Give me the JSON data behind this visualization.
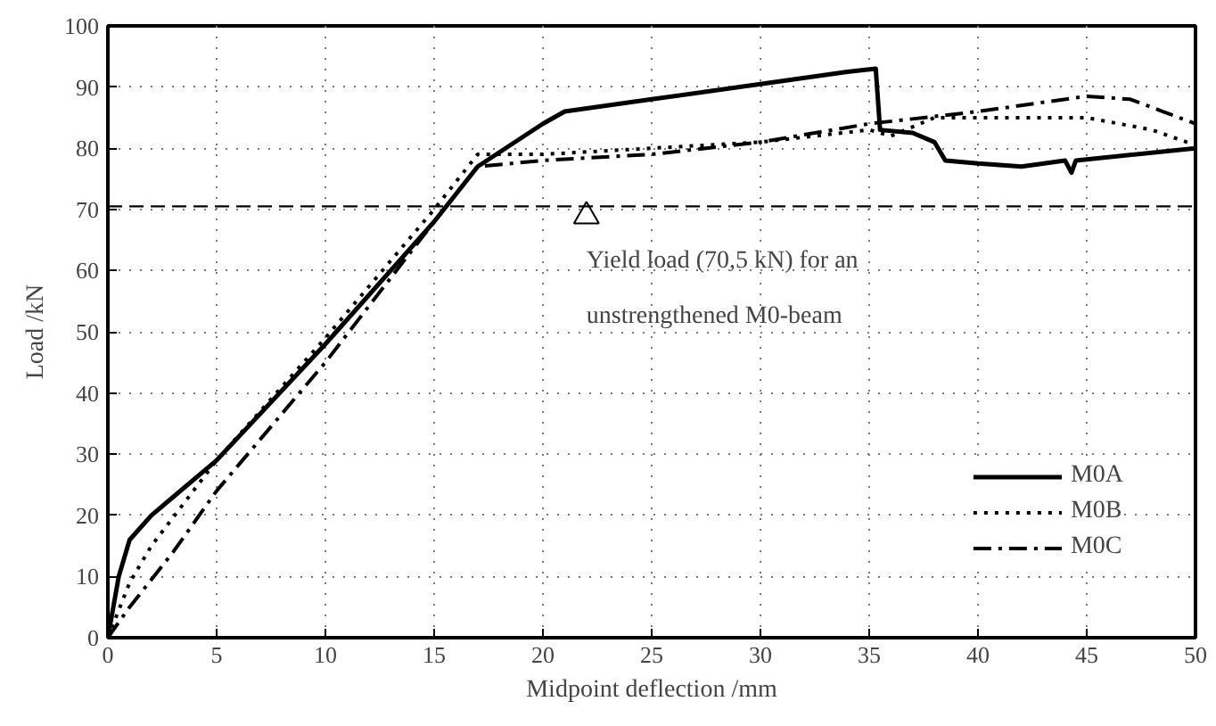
{
  "chart_data": {
    "type": "line",
    "xlabel": "Midpoint deflection /mm",
    "ylabel": "Load /kN",
    "xlim": [
      0,
      50
    ],
    "ylim": [
      0,
      100
    ],
    "xticks": [
      0,
      5,
      10,
      15,
      20,
      25,
      30,
      35,
      40,
      45,
      50
    ],
    "yticks": [
      0,
      10,
      20,
      30,
      40,
      50,
      60,
      70,
      80,
      90,
      100
    ],
    "grid": true,
    "legend": "bottom right",
    "marker": "none",
    "series": [
      {
        "name": "M0A",
        "color": "#000000",
        "line_style": "solid",
        "x": [
          0,
          0.5,
          1,
          2,
          3,
          5,
          10,
          15,
          17,
          20,
          21,
          25,
          30,
          34,
          35.3,
          35.5,
          37,
          38,
          38.5,
          40,
          42,
          44,
          44.3,
          44.5,
          50
        ],
        "values": [
          0,
          10,
          16,
          20,
          23,
          29,
          48,
          68,
          77,
          84,
          86,
          88,
          90.5,
          92.5,
          93,
          83,
          82.5,
          81,
          78,
          77.5,
          77,
          78,
          76,
          78,
          80
        ]
      },
      {
        "name": "M0B",
        "color": "#000000",
        "line_style": "dotted",
        "x": [
          0,
          1,
          2,
          5,
          10,
          15,
          17,
          20,
          25,
          30,
          35,
          36,
          38,
          45,
          48,
          50
        ],
        "values": [
          0,
          9,
          15,
          29,
          49,
          70,
          79,
          79,
          80,
          81,
          83,
          82,
          85,
          85,
          83,
          80.5
        ]
      },
      {
        "name": "M0C",
        "color": "#000000",
        "line_style": "dashdot",
        "x": [
          0,
          1,
          3,
          5,
          10,
          15,
          17,
          20,
          25,
          30,
          35,
          40,
          45,
          47,
          48.5,
          50
        ],
        "values": [
          0,
          5,
          14,
          24,
          45,
          68,
          77,
          78,
          79,
          81,
          84,
          86,
          88.5,
          88,
          86,
          84
        ]
      },
      {
        "type": "scatter",
        "marker": "triangle",
        "color": "#000000",
        "x": [
          22
        ],
        "values": [
          68.9
        ]
      }
    ],
    "ref_lines": [
      {
        "axis": "y",
        "value": 70.5,
        "line_style": "dashed",
        "color": "#000000"
      }
    ],
    "annotations": [
      {
        "text": "Yield load (70,5 kN) for an\nunstrengthened M0-beam",
        "x": 22,
        "y": 70.5
      }
    ]
  }
}
